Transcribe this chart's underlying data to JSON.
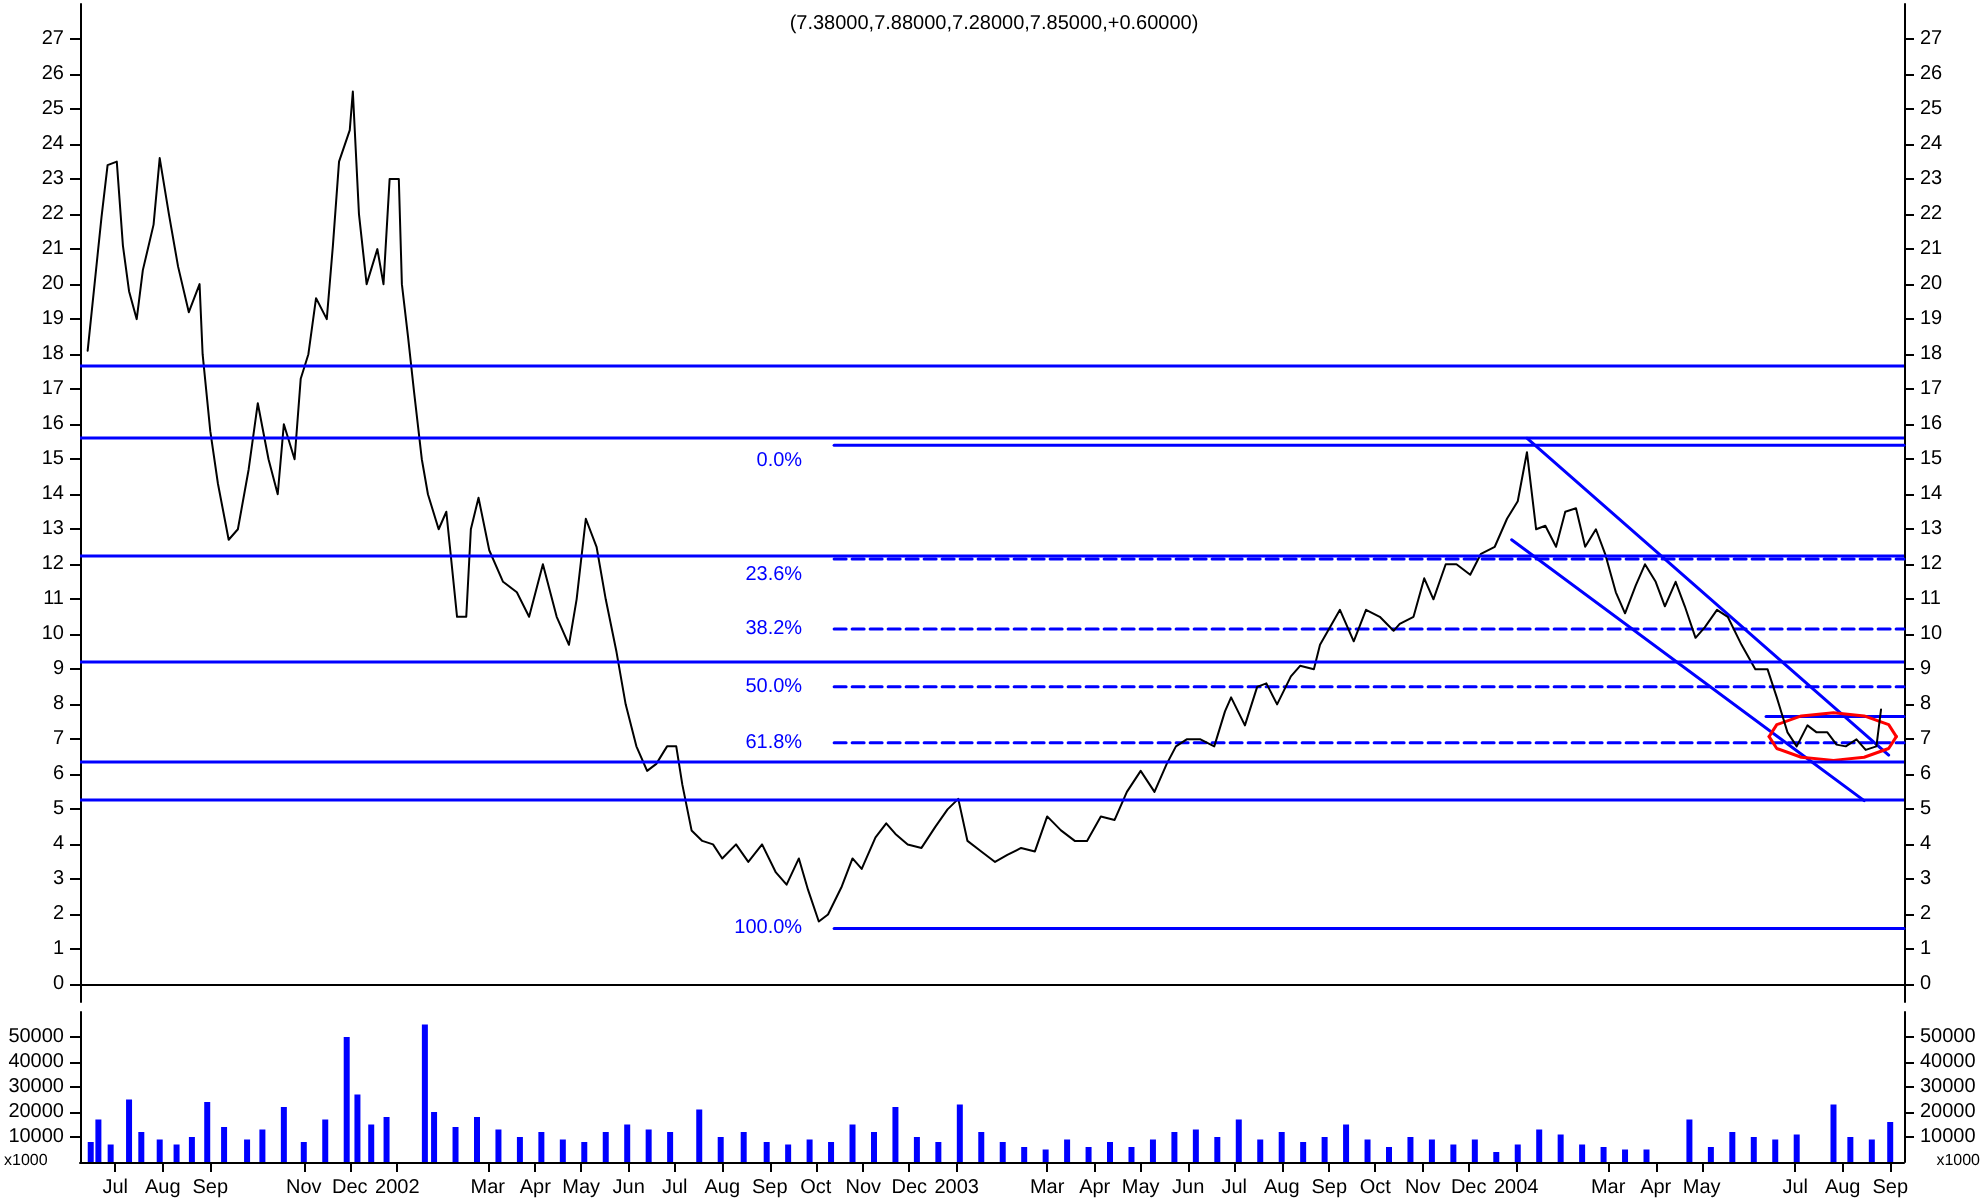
{
  "chart_data": [
    {
      "type": "line",
      "title": "(7.38000,7.88000,7.28000,7.85000,+0.60000)",
      "xlim": [
        "2001-06-08",
        "2004-09-10"
      ],
      "ylim": [
        -0.5,
        28
      ],
      "yticks": [
        0,
        1,
        2,
        3,
        4,
        5,
        6,
        7,
        8,
        9,
        10,
        11,
        12,
        13,
        14,
        15,
        16,
        17,
        18,
        19,
        20,
        21,
        22,
        23,
        24,
        25,
        26,
        27
      ],
      "y2lim": [
        -0.5,
        28
      ],
      "y2ticks": [
        0,
        1,
        2,
        3,
        4,
        5,
        6,
        7,
        8,
        9,
        10,
        11,
        12,
        13,
        14,
        15,
        16,
        17,
        18,
        19,
        20,
        21,
        22,
        23,
        24,
        25,
        26,
        27
      ],
      "tick_labels": "y",
      "grid": false,
      "legend": false,
      "marker": "none",
      "ref_lines": [
        {
          "axis": "y",
          "value": 17.7,
          "color": "#0000ff"
        },
        {
          "axis": "y",
          "value": 15.6,
          "color": "#0000ff"
        },
        {
          "axis": "y",
          "value": 12.25,
          "color": "#0000ff"
        },
        {
          "axis": "y",
          "value": 9.2,
          "color": "#0000ff"
        },
        {
          "axis": "y",
          "value": 6.35,
          "color": "#0000ff"
        },
        {
          "axis": "y",
          "value": 5.3,
          "color": "#0000ff"
        }
      ],
      "series": [
        {
          "color": "#000000",
          "x": [
            "2001-06-13",
            "2001-06-22",
            "2001-06-26",
            "2001-07-02",
            "2001-07-06",
            "2001-07-10",
            "2001-07-15",
            "2001-07-19",
            "2001-07-26",
            "2001-07-30",
            "2001-08-05",
            "2001-08-11",
            "2001-08-18",
            "2001-08-25",
            "2001-08-27",
            "2001-09-01",
            "2001-09-06",
            "2001-09-13",
            "2001-09-19",
            "2001-09-26",
            "2001-10-02",
            "2001-10-09",
            "2001-10-15",
            "2001-10-19",
            "2001-10-26",
            "2001-10-30",
            "2001-11-04",
            "2001-11-09",
            "2001-11-16",
            "2001-11-20",
            "2001-11-24",
            "2001-12-01",
            "2001-12-03",
            "2001-12-07",
            "2001-12-12",
            "2001-12-19",
            "2001-12-23",
            "2001-12-27",
            "2002-01-02",
            "2002-01-04",
            "2002-01-08",
            "2002-01-12",
            "2002-01-17",
            "2002-01-21",
            "2002-01-28",
            "2002-02-02",
            "2002-02-09",
            "2002-02-15",
            "2002-02-18",
            "2002-02-23",
            "2002-03-02",
            "2002-03-11",
            "2002-03-20",
            "2002-03-28",
            "2002-04-06",
            "2002-04-15",
            "2002-04-23",
            "2002-04-28",
            "2002-05-04",
            "2002-05-11",
            "2002-05-17",
            "2002-05-24",
            "2002-05-30",
            "2002-06-06",
            "2002-06-13",
            "2002-06-19",
            "2002-06-26",
            "2002-07-02",
            "2002-07-06",
            "2002-07-12",
            "2002-07-19",
            "2002-07-26",
            "2002-08-01",
            "2002-08-10",
            "2002-08-18",
            "2002-08-27",
            "2002-09-05",
            "2002-09-12",
            "2002-09-20",
            "2002-09-26",
            "2002-10-03",
            "2002-10-09",
            "2002-10-18",
            "2002-10-25",
            "2002-10-31",
            "2002-11-09",
            "2002-11-16",
            "2002-11-22",
            "2002-11-30",
            "2002-12-09",
            "2002-12-18",
            "2002-12-26",
            "2003-01-02",
            "2003-01-08",
            "2003-01-17",
            "2003-01-26",
            "2003-02-03",
            "2003-02-12",
            "2003-02-21",
            "2003-03-01",
            "2003-03-10",
            "2003-03-19",
            "2003-03-27",
            "2003-04-05",
            "2003-04-14",
            "2003-04-22",
            "2003-05-01",
            "2003-05-10",
            "2003-05-18",
            "2003-05-24",
            "2003-05-31",
            "2003-06-09",
            "2003-06-18",
            "2003-06-25",
            "2003-06-29",
            "2003-07-08",
            "2003-07-16",
            "2003-07-22",
            "2003-07-29",
            "2003-08-07",
            "2003-08-13",
            "2003-08-22",
            "2003-08-26",
            "2003-09-08",
            "2003-09-17",
            "2003-09-25",
            "2003-10-04",
            "2003-10-13",
            "2003-10-17",
            "2003-10-26",
            "2003-11-02",
            "2003-11-08",
            "2003-11-16",
            "2003-11-23",
            "2003-12-02",
            "2003-12-09",
            "2003-12-18",
            "2003-12-26",
            "2004-01-02",
            "2004-01-08",
            "2004-01-14",
            "2004-01-20",
            "2004-01-27",
            "2004-02-02",
            "2004-02-09",
            "2004-02-15",
            "2004-02-22",
            "2004-02-28",
            "2004-03-06",
            "2004-03-12",
            "2004-03-19",
            "2004-03-25",
            "2004-04-01",
            "2004-04-07",
            "2004-04-14",
            "2004-04-20",
            "2004-04-27",
            "2004-05-03",
            "2004-05-11",
            "2004-05-18",
            "2004-05-27",
            "2004-06-05",
            "2004-06-13",
            "2004-06-19",
            "2004-06-26",
            "2004-07-02",
            "2004-07-09",
            "2004-07-15",
            "2004-07-22",
            "2004-07-28",
            "2004-08-03",
            "2004-08-10",
            "2004-08-16",
            "2004-08-23",
            "2004-08-26"
          ],
          "values": [
            18.1,
            21.9,
            23.4,
            23.5,
            21.1,
            19.8,
            19.0,
            20.4,
            21.7,
            23.6,
            22.0,
            20.5,
            19.2,
            20.0,
            18.0,
            15.8,
            14.3,
            12.7,
            13.0,
            14.7,
            16.6,
            15.0,
            14.0,
            16.0,
            15.0,
            17.3,
            18.0,
            19.6,
            19.0,
            21.1,
            23.5,
            24.4,
            25.5,
            22.0,
            20.0,
            21.0,
            20.0,
            23.0,
            23.0,
            20.0,
            18.5,
            16.9,
            15.0,
            14.0,
            13.0,
            13.5,
            10.5,
            10.5,
            13.0,
            13.9,
            12.4,
            11.5,
            11.2,
            10.5,
            12.0,
            10.5,
            9.7,
            11.0,
            13.3,
            12.5,
            11.0,
            9.5,
            8.0,
            6.8,
            6.1,
            6.3,
            6.8,
            6.8,
            5.7,
            4.4,
            4.1,
            4.0,
            3.6,
            4.0,
            3.5,
            4.0,
            3.2,
            2.85,
            3.6,
            2.7,
            1.8,
            2.0,
            2.8,
            3.6,
            3.3,
            4.2,
            4.6,
            4.3,
            4.0,
            3.9,
            4.5,
            5.0,
            5.3,
            4.1,
            3.8,
            3.5,
            3.7,
            3.9,
            3.8,
            4.8,
            4.4,
            4.1,
            4.1,
            4.8,
            4.7,
            5.5,
            6.1,
            5.5,
            6.3,
            6.8,
            7.0,
            7.0,
            6.8,
            7.8,
            8.2,
            7.4,
            8.5,
            8.6,
            8.0,
            8.8,
            9.1,
            9.0,
            9.7,
            10.7,
            9.8,
            10.7,
            10.5,
            10.1,
            10.3,
            10.5,
            11.6,
            11.0,
            12.0,
            12.0,
            11.7,
            12.3,
            12.5,
            13.3,
            13.8,
            15.2,
            13.0,
            13.1,
            12.5,
            13.5,
            13.6,
            12.5,
            13.0,
            12.3,
            11.2,
            10.6,
            11.4,
            12.0,
            11.5,
            10.8,
            11.5,
            10.8,
            9.9,
            10.2,
            10.7,
            10.5,
            9.7,
            9.0,
            9.0,
            8.2,
            7.2,
            6.8,
            7.4,
            7.2,
            7.2,
            6.85,
            6.8,
            7.0,
            6.7,
            6.8,
            7.85
          ]
        },
        {
          "name": "0.0%",
          "color": "#0000ff",
          "line_style": "solid",
          "x": [
            "2002-10-13",
            "2004-09-10"
          ],
          "values": [
            15.4,
            15.4
          ]
        },
        {
          "name": "23.6%",
          "color": "#0000ff",
          "line_style": "dashed",
          "x": [
            "2002-10-13",
            "2004-09-10"
          ],
          "values": [
            12.15,
            12.15
          ]
        },
        {
          "name": "38.2%",
          "color": "#0000ff",
          "line_style": "dashed",
          "x": [
            "2002-10-13",
            "2004-09-10"
          ],
          "values": [
            10.15,
            10.15
          ]
        },
        {
          "name": "50.0%",
          "color": "#0000ff",
          "line_style": "dashed",
          "x": [
            "2002-10-13",
            "2004-09-10"
          ],
          "values": [
            8.5,
            8.5
          ]
        },
        {
          "name": "61.8%",
          "color": "#0000ff",
          "line_style": "dashed",
          "x": [
            "2002-10-13",
            "2004-09-10"
          ],
          "values": [
            6.9,
            6.9
          ]
        },
        {
          "name": "100.0%",
          "color": "#0000ff",
          "line_style": "solid",
          "x": [
            "2002-10-13",
            "2004-09-10"
          ],
          "values": [
            1.6,
            1.6
          ]
        },
        {
          "color": "#0000ff",
          "line_style": "solid",
          "x": [
            "2004-01-08",
            "2004-08-31"
          ],
          "values": [
            15.6,
            6.55
          ]
        },
        {
          "color": "#0000ff",
          "line_style": "solid",
          "x": [
            "2003-12-29",
            "2004-08-15"
          ],
          "values": [
            12.7,
            5.25
          ]
        },
        {
          "color": "#0000ff",
          "line_style": "solid",
          "x": [
            "2004-06-12",
            "2004-09-10"
          ],
          "values": [
            7.65,
            7.65
          ]
        },
        {
          "color": "#ff0000",
          "line_style": "solid",
          "x": [
            "2004-06-14",
            "2004-06-19",
            "2004-07-05",
            "2004-07-26",
            "2004-08-15",
            "2004-08-31",
            "2004-09-05"
          ],
          "values": [
            7.08,
            7.42,
            7.67,
            7.76,
            7.67,
            7.42,
            7.08
          ]
        },
        {
          "color": "#ff0000",
          "line_style": "solid",
          "x": [
            "2004-06-14",
            "2004-06-19",
            "2004-07-05",
            "2004-07-26",
            "2004-08-15",
            "2004-08-31",
            "2004-09-05"
          ],
          "values": [
            7.08,
            6.74,
            6.49,
            6.4,
            6.49,
            6.74,
            7.08
          ]
        }
      ]
    },
    {
      "type": "bar",
      "color": "#0000ff",
      "annotations": [
        "x1000"
      ],
      "xlim": [
        "2001-06-08",
        "2004-09-10"
      ],
      "xticks": [
        {
          "value": "2001-07-01",
          "label": "Jul"
        },
        {
          "value": "2001-08-01",
          "label": "Aug"
        },
        {
          "value": "2001-09-01",
          "label": "Sep"
        },
        {
          "value": "2001-11-01",
          "label": "Nov"
        },
        {
          "value": "2001-12-01",
          "label": "Dec"
        },
        {
          "value": "2002-01-01",
          "label": "2002"
        },
        {
          "value": "2002-03-01",
          "label": "Mar"
        },
        {
          "value": "2002-04-01",
          "label": "Apr"
        },
        {
          "value": "2002-05-01",
          "label": "May"
        },
        {
          "value": "2002-06-01",
          "label": "Jun"
        },
        {
          "value": "2002-07-01",
          "label": "Jul"
        },
        {
          "value": "2002-08-01",
          "label": "Aug"
        },
        {
          "value": "2002-09-01",
          "label": "Sep"
        },
        {
          "value": "2002-10-01",
          "label": "Oct"
        },
        {
          "value": "2002-11-01",
          "label": "Nov"
        },
        {
          "value": "2002-12-01",
          "label": "Dec"
        },
        {
          "value": "2003-01-01",
          "label": "2003"
        },
        {
          "value": "2003-03-01",
          "label": "Mar"
        },
        {
          "value": "2003-04-01",
          "label": "Apr"
        },
        {
          "value": "2003-05-01",
          "label": "May"
        },
        {
          "value": "2003-06-01",
          "label": "Jun"
        },
        {
          "value": "2003-07-01",
          "label": "Jul"
        },
        {
          "value": "2003-08-01",
          "label": "Aug"
        },
        {
          "value": "2003-09-01",
          "label": "Sep"
        },
        {
          "value": "2003-10-01",
          "label": "Oct"
        },
        {
          "value": "2003-11-01",
          "label": "Nov"
        },
        {
          "value": "2003-12-01",
          "label": "Dec"
        },
        {
          "value": "2004-01-01",
          "label": "2004"
        },
        {
          "value": "2004-03-01",
          "label": "Mar"
        },
        {
          "value": "2004-04-01",
          "label": "Apr"
        },
        {
          "value": "2004-05-01",
          "label": "May"
        },
        {
          "value": "2004-07-01",
          "label": "Jul"
        },
        {
          "value": "2004-08-01",
          "label": "Aug"
        },
        {
          "value": "2004-09-01",
          "label": "Sep"
        }
      ],
      "ylim": [
        0,
        60000
      ],
      "yticks": [
        10000,
        20000,
        30000,
        40000,
        50000
      ],
      "y2lim": [
        0,
        60000
      ],
      "y2ticks": [
        10000,
        20000,
        30000,
        40000,
        50000
      ],
      "grid": false,
      "legend": false,
      "x": [
        "2001-06-15",
        "2001-06-20",
        "2001-06-28",
        "2001-07-10",
        "2001-07-18",
        "2001-07-30",
        "2001-08-10",
        "2001-08-20",
        "2001-08-30",
        "2001-09-10",
        "2001-09-25",
        "2001-10-05",
        "2001-10-19",
        "2001-11-01",
        "2001-11-15",
        "2001-11-29",
        "2001-12-06",
        "2001-12-15",
        "2001-12-25",
        "2002-01-19",
        "2002-01-25",
        "2002-02-08",
        "2002-02-22",
        "2002-03-08",
        "2002-03-22",
        "2002-04-05",
        "2002-04-19",
        "2002-05-03",
        "2002-05-17",
        "2002-05-31",
        "2002-06-14",
        "2002-06-28",
        "2002-07-17",
        "2002-07-31",
        "2002-08-15",
        "2002-08-30",
        "2002-09-13",
        "2002-09-27",
        "2002-10-11",
        "2002-10-25",
        "2002-11-08",
        "2002-11-22",
        "2002-12-06",
        "2002-12-20",
        "2003-01-03",
        "2003-01-17",
        "2003-01-31",
        "2003-02-14",
        "2003-02-28",
        "2003-03-14",
        "2003-03-28",
        "2003-04-11",
        "2003-04-25",
        "2003-05-09",
        "2003-05-23",
        "2003-06-06",
        "2003-06-20",
        "2003-07-04",
        "2003-07-18",
        "2003-08-01",
        "2003-08-15",
        "2003-08-29",
        "2003-09-12",
        "2003-09-26",
        "2003-10-10",
        "2003-10-24",
        "2003-11-07",
        "2003-11-21",
        "2003-12-05",
        "2003-12-19",
        "2004-01-02",
        "2004-01-16",
        "2004-01-30",
        "2004-02-13",
        "2004-02-27",
        "2004-03-12",
        "2004-03-26",
        "2004-04-23",
        "2004-05-07",
        "2004-05-21",
        "2004-06-04",
        "2004-06-18",
        "2004-07-02",
        "2004-07-26",
        "2004-08-06",
        "2004-08-20",
        "2004-09-01"
      ],
      "values": [
        8000,
        17000,
        7000,
        25000,
        12000,
        9000,
        7000,
        10000,
        24000,
        14000,
        9000,
        13000,
        22000,
        8000,
        17000,
        50000,
        27000,
        15000,
        18000,
        55000,
        20000,
        14000,
        18000,
        13000,
        10000,
        12000,
        9000,
        8000,
        12000,
        15000,
        13000,
        12000,
        21000,
        10000,
        12000,
        8000,
        7000,
        9000,
        8000,
        15000,
        12000,
        22000,
        10000,
        8000,
        23000,
        12000,
        8000,
        6000,
        5000,
        9000,
        6000,
        8000,
        6000,
        9000,
        12000,
        13000,
        10000,
        17000,
        9000,
        12000,
        8000,
        10000,
        15000,
        9000,
        6000,
        10000,
        9000,
        7000,
        9000,
        4000,
        7000,
        13000,
        11000,
        7000,
        6000,
        5000,
        5000,
        17000,
        6000,
        12000,
        10000,
        9000,
        11000,
        23000,
        10000,
        9000,
        16000
      ]
    }
  ]
}
